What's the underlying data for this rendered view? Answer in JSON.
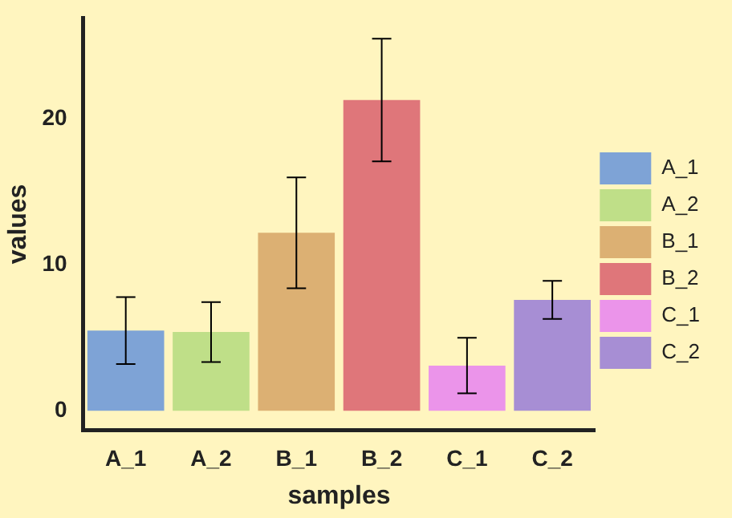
{
  "chart_data": {
    "type": "bar",
    "xlabel": "samples",
    "ylabel": "values",
    "categories": [
      "A_1",
      "A_2",
      "B_1",
      "B_2",
      "C_1",
      "C_2"
    ],
    "series": [
      {
        "name": "A_1",
        "color": "#7ea3d6",
        "values": [
          5.5,
          null,
          null,
          null,
          null,
          null
        ],
        "errors": [
          2.3,
          null,
          null,
          null,
          null,
          null
        ]
      },
      {
        "name": "A_2",
        "color": "#bfdf88",
        "values": [
          null,
          5.4,
          null,
          null,
          null,
          null
        ],
        "errors": [
          null,
          2.05,
          null,
          null,
          null,
          null
        ]
      },
      {
        "name": "B_1",
        "color": "#dcb073",
        "values": [
          null,
          null,
          12.2,
          null,
          null,
          null
        ],
        "errors": [
          null,
          null,
          3.8,
          null,
          null,
          null
        ]
      },
      {
        "name": "B_2",
        "color": "#df767a",
        "values": [
          null,
          null,
          null,
          21.3,
          null,
          null
        ],
        "errors": [
          null,
          null,
          null,
          4.2,
          null,
          null
        ]
      },
      {
        "name": "C_1",
        "color": "#eb94ea",
        "values": [
          null,
          null,
          null,
          null,
          3.1,
          null
        ],
        "errors": [
          null,
          null,
          null,
          null,
          1.9,
          null
        ]
      },
      {
        "name": "C_2",
        "color": "#a78ed4",
        "values": [
          null,
          null,
          null,
          null,
          null,
          7.6
        ],
        "errors": [
          null,
          null,
          null,
          null,
          null,
          1.3
        ]
      }
    ],
    "ylim": [
      -1.3,
      26.9
    ],
    "yticks": [
      0,
      10,
      20
    ],
    "grid": false,
    "legend": "right"
  }
}
